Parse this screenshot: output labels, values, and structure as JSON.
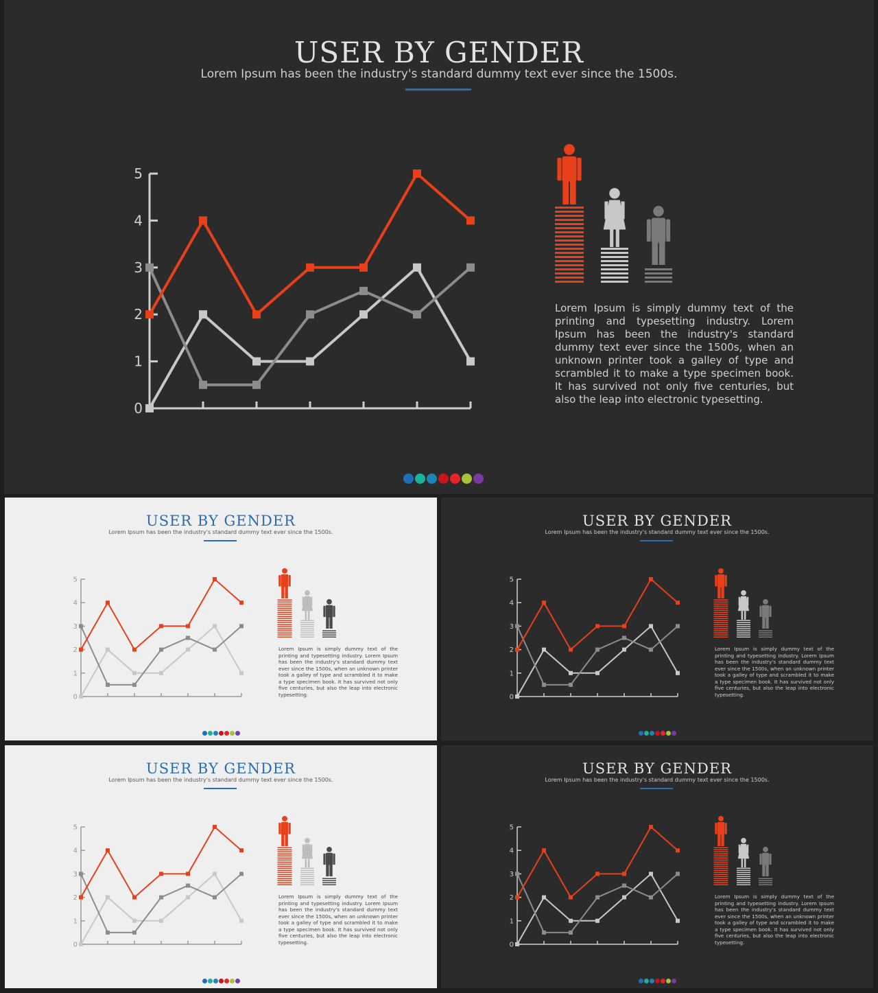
{
  "slide": {
    "title": "USER BY GENDER",
    "subtitle": "Lorem Ipsum has been the industry's standard dummy text ever since the 1500s.",
    "description": "Lorem Ipsum is simply dummy text of the printing and typesetting industry. Lorem Ipsum has been the industry's standard dummy text ever since the 1500s, when an unknown printer took a galley of type and scrambled it to make a type specimen book. It has survived not only five centuries, but also the leap into electronic typesetting.",
    "figure_icons": [
      "male-icon",
      "female-icon",
      "person-icon"
    ],
    "palette_dots": [
      "#1f6fb8",
      "#18b39a",
      "#1b86b3",
      "#c8151b",
      "#e8242a",
      "#a6c238",
      "#7b3aa0"
    ]
  },
  "colors": {
    "accent": "#2a6db3",
    "series_orange": "#e8401a",
    "series_light": "#c8c8c8",
    "series_mid": "#8c8c8c",
    "dark_bg": "#2b2b2b",
    "light_bg": "#efefef"
  },
  "chart_data": {
    "type": "line",
    "x": [
      1,
      2,
      3,
      4,
      5,
      6,
      7
    ],
    "ylim": [
      0,
      5
    ],
    "y_ticks": [
      "0",
      "1",
      "2",
      "3",
      "4",
      "5"
    ],
    "grid": false,
    "series": [
      {
        "color": "#e8401a",
        "values": [
          2,
          4,
          2,
          3,
          3,
          5,
          4
        ]
      },
      {
        "color": "#8c8c8c",
        "values": [
          3,
          0.5,
          0.5,
          2,
          2.5,
          2,
          3
        ]
      },
      {
        "color": "#c8c8c8",
        "values": [
          0,
          2,
          1,
          1,
          2,
          3,
          1
        ]
      }
    ]
  }
}
